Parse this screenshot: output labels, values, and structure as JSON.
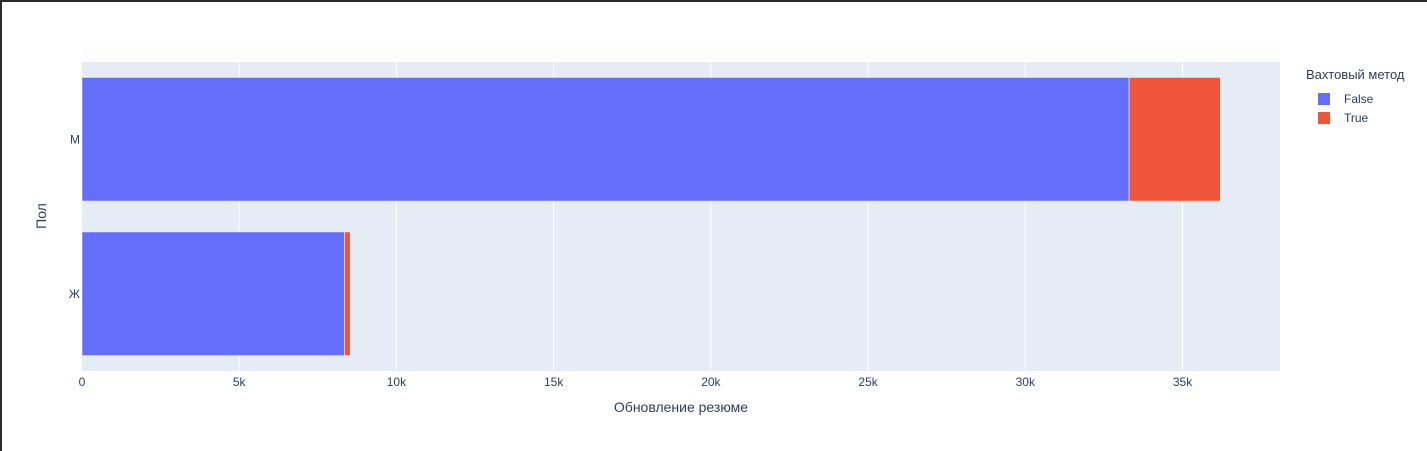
{
  "chart_data": {
    "type": "bar",
    "orientation": "horizontal",
    "barmode": "stack",
    "categories": [
      "Ж",
      "М"
    ],
    "series": [
      {
        "name": "False",
        "color": "#636efa",
        "values": [
          8350,
          33300
        ]
      },
      {
        "name": "True",
        "color": "#ef553b",
        "values": [
          180,
          2900
        ]
      }
    ],
    "xlabel": "Обновление резюме",
    "ylabel": "Пол",
    "xlim": [
      0,
      38100
    ],
    "xticks": [
      0,
      5000,
      10000,
      15000,
      20000,
      25000,
      30000,
      35000
    ],
    "xtick_labels": [
      "0",
      "5k",
      "10k",
      "15k",
      "20k",
      "25k",
      "30k",
      "35k"
    ],
    "legend_title": "Вахтовый метод",
    "legend_position": "right",
    "grid": true,
    "plot_background": "#e5ecf6"
  }
}
